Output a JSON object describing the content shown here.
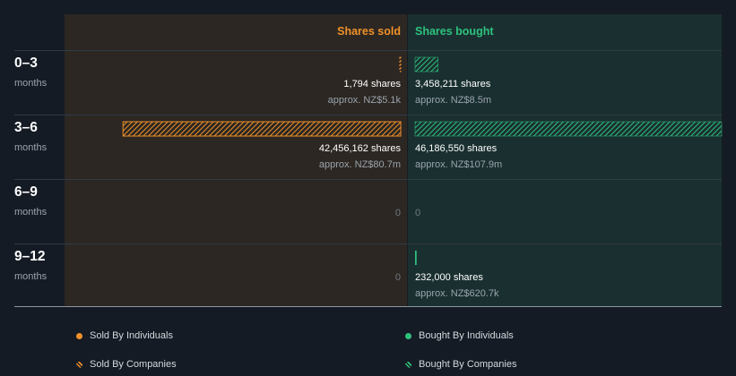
{
  "colors": {
    "sold": "#f0912a",
    "bought": "#2ec27e"
  },
  "chart_data": {
    "type": "bar",
    "orientation": "horizontal-diverging",
    "title": "",
    "headers": {
      "sold": "Shares sold",
      "bought": "Shares bought"
    },
    "categories": [
      {
        "label": "0–3",
        "sub": "months"
      },
      {
        "label": "3–6",
        "sub": "months"
      },
      {
        "label": "6–9",
        "sub": "months"
      },
      {
        "label": "9–12",
        "sub": "months"
      }
    ],
    "series": [
      {
        "name": "Sold By Companies",
        "side": "sold",
        "values": [
          1794,
          42456162,
          0,
          0
        ],
        "shares_labels": [
          "1,794 shares",
          "42,456,162 shares",
          "0",
          "0"
        ],
        "approx_labels": [
          "approx. NZ$5.1k",
          "approx. NZ$80.7m",
          "",
          ""
        ]
      },
      {
        "name": "Bought By Companies",
        "side": "bought",
        "values": [
          3458211,
          46186550,
          0,
          232000
        ],
        "shares_labels": [
          "3,458,211 shares",
          "46,186,550 shares",
          "0",
          "232,000 shares"
        ],
        "approx_labels": [
          "approx. NZ$8.5m",
          "approx. NZ$107.9m",
          "",
          "approx. NZ$620.7k"
        ]
      }
    ],
    "xlim": [
      0,
      46186550
    ]
  },
  "legend": [
    {
      "label": "Sold By Individuals",
      "style": "solid",
      "side": "sold"
    },
    {
      "label": "Bought By Individuals",
      "style": "solid",
      "side": "bought"
    },
    {
      "label": "Sold By Companies",
      "style": "hatched",
      "side": "sold"
    },
    {
      "label": "Bought By Companies",
      "style": "hatched",
      "side": "bought"
    }
  ]
}
